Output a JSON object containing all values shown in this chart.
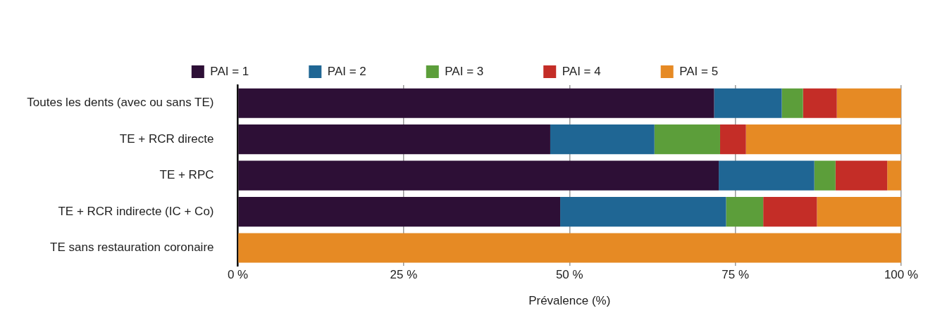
{
  "chart_data": {
    "type": "bar",
    "orientation": "horizontal",
    "stacked": true,
    "xlabel": "Prévalence (%)",
    "categories": [
      "Toutes les dents (avec ou sans TE)",
      "TE + RCR directe",
      "TE + RPC",
      "TE + RCR indirecte (IC + Co)",
      "TE sans restauration coronaire"
    ],
    "series": [
      {
        "name": "PAI = 1",
        "color": "#2d0f36",
        "values": [
          71.8,
          47.1,
          72.5,
          48.6,
          0
        ]
      },
      {
        "name": "PAI = 2",
        "color": "#1f6694",
        "values": [
          10.2,
          15.7,
          14.4,
          25.0,
          0
        ]
      },
      {
        "name": "PAI = 3",
        "color": "#5c9e3a",
        "values": [
          3.2,
          9.9,
          3.2,
          5.6,
          0
        ]
      },
      {
        "name": "PAI = 4",
        "color": "#c42d27",
        "values": [
          5.1,
          3.9,
          7.8,
          8.1,
          0
        ]
      },
      {
        "name": "PAI = 5",
        "color": "#e68a24",
        "values": [
          9.7,
          23.4,
          2.1,
          12.7,
          100
        ]
      }
    ],
    "xlim": [
      0,
      100
    ],
    "xticks": [
      {
        "value": 0,
        "label": "0 %"
      },
      {
        "value": 25,
        "label": "25 %"
      },
      {
        "value": 50,
        "label": "50 %"
      },
      {
        "value": 75,
        "label": "75 %"
      },
      {
        "value": 100,
        "label": "100 %"
      }
    ],
    "grid": "x",
    "legend": "top"
  }
}
